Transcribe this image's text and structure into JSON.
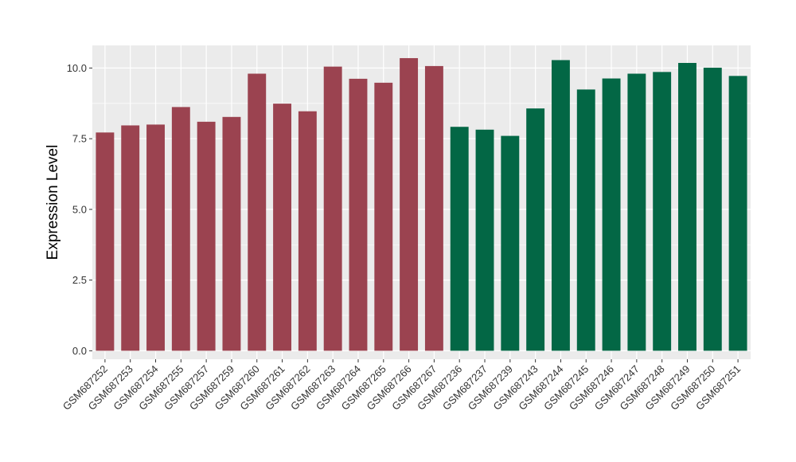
{
  "chart_data": {
    "type": "bar",
    "title": "",
    "xlabel": "",
    "ylabel": "Expression Level",
    "ylim": [
      -0.3,
      10.8
    ],
    "yticks": [
      "0.0",
      "2.5",
      "5.0",
      "7.5",
      "10.0"
    ],
    "ytick_values": [
      0,
      2.5,
      5,
      7.5,
      10
    ],
    "grid": true,
    "legend": "none",
    "colors": {
      "group1": "#9b4350",
      "group2": "#036745",
      "panel": "#ebebeb",
      "grid": "#ffffff"
    },
    "categories": [
      "GSM687252",
      "GSM687253",
      "GSM687254",
      "GSM687255",
      "GSM687257",
      "GSM687259",
      "GSM687260",
      "GSM687261",
      "GSM687262",
      "GSM687263",
      "GSM687264",
      "GSM687265",
      "GSM687266",
      "GSM687267",
      "GSM687236",
      "GSM687237",
      "GSM687239",
      "GSM687243",
      "GSM687244",
      "GSM687245",
      "GSM687246",
      "GSM687247",
      "GSM687248",
      "GSM687249",
      "GSM687250",
      "GSM687251"
    ],
    "values": [
      7.72,
      7.97,
      8.0,
      8.62,
      8.1,
      8.27,
      9.8,
      8.74,
      8.47,
      10.05,
      9.62,
      9.48,
      10.35,
      10.07,
      7.92,
      7.82,
      7.6,
      8.57,
      10.28,
      9.24,
      9.63,
      9.8,
      9.86,
      10.18,
      10.01,
      9.72
    ],
    "groups": [
      1,
      1,
      1,
      1,
      1,
      1,
      1,
      1,
      1,
      1,
      1,
      1,
      1,
      1,
      2,
      2,
      2,
      2,
      2,
      2,
      2,
      2,
      2,
      2,
      2,
      2
    ]
  }
}
